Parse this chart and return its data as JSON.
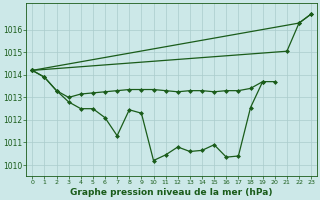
{
  "title": "Graphe pression niveau de la mer (hPa)",
  "background_color": "#cce8e8",
  "grid_color": "#aacccc",
  "line_color": "#1a5c1a",
  "xlim": [
    -0.5,
    23.5
  ],
  "ylim": [
    1009.5,
    1017.2
  ],
  "yticks": [
    1010,
    1011,
    1012,
    1013,
    1014,
    1015,
    1016
  ],
  "xticks": [
    0,
    1,
    2,
    3,
    4,
    5,
    6,
    7,
    8,
    9,
    10,
    11,
    12,
    13,
    14,
    15,
    16,
    17,
    18,
    19,
    20,
    21,
    22,
    23
  ],
  "series1": [
    1014.2,
    1013.9,
    1013.3,
    1012.8,
    1012.5,
    1012.5,
    1012.1,
    1011.3,
    1012.45,
    1012.3,
    1010.2,
    1010.45,
    1010.8,
    1010.6,
    1010.65,
    1010.9,
    1010.35,
    1010.4,
    1012.55,
    1013.7,
    null,
    null,
    null,
    null
  ],
  "series2": [
    1014.2,
    null,
    null,
    null,
    null,
    null,
    null,
    null,
    null,
    null,
    null,
    null,
    null,
    null,
    null,
    null,
    null,
    null,
    null,
    null,
    null,
    null,
    1016.3,
    1016.7
  ],
  "series3": [
    1014.2,
    1013.9,
    1013.3,
    1013.0,
    1013.15,
    1013.2,
    1013.25,
    1013.3,
    1013.35,
    1013.35,
    1013.35,
    1013.3,
    1013.25,
    1013.3,
    1013.3,
    1013.25,
    1013.3,
    1013.3,
    1013.4,
    1013.7,
    1013.7,
    null,
    null,
    null
  ],
  "series4": [
    1014.2,
    null,
    null,
    null,
    null,
    null,
    null,
    null,
    null,
    null,
    null,
    null,
    null,
    null,
    null,
    null,
    null,
    null,
    null,
    null,
    null,
    1015.05,
    1016.3,
    1016.7
  ]
}
